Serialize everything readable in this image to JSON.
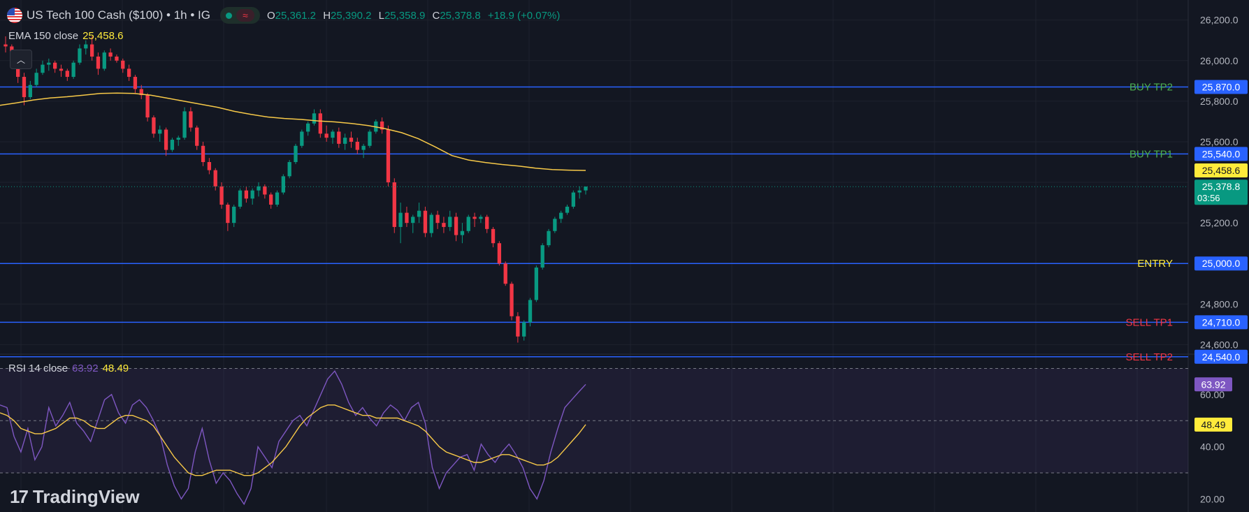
{
  "header": {
    "title": "US Tech 100 Cash ($100) • 1h • IG",
    "o_key": "O",
    "o_val": "25,361.2",
    "h_key": "H",
    "h_val": "25,390.2",
    "l_key": "L",
    "l_val": "25,358.9",
    "c_key": "C",
    "c_val": "25,378.8",
    "change": "+18.9 (+0.07%)"
  },
  "ema_legend": {
    "label": "EMA 150 close",
    "value": "25,458.6"
  },
  "rsi_legend": {
    "label": "RSI 14 close",
    "value1": "63.92",
    "value2": "48.49"
  },
  "brand": {
    "name": "TradingView"
  },
  "colors": {
    "background": "#131722",
    "up": "#089981",
    "down": "#f23645",
    "ema": "#f7c948",
    "rsi": "#7e57c2",
    "rsi_ma": "#f7c948",
    "level_line": "#2962ff",
    "buy_label": "#4caf50",
    "sell_label": "#f23645",
    "entry_label": "#ffeb3b"
  },
  "chart_data": [
    {
      "type": "candlestick",
      "title": "US Tech 100 Cash ($100) • 1h • IG",
      "y_ticks": [
        "26,200.0",
        "26,000.0",
        "25,800.0",
        "25,600.0",
        "25,200.0",
        "24,800.0",
        "24,600.0"
      ],
      "ylim": [
        24560,
        26230
      ],
      "grid": true,
      "current_price": {
        "value": 25378.8,
        "label": "25,378.8",
        "countdown": "03:56"
      },
      "ema": {
        "name": "EMA 150 close",
        "last_value": 25458.6,
        "last_label": "25,458.6",
        "values": [
          25780,
          25792,
          25806,
          25816,
          25822,
          25830,
          25838,
          25840,
          25838,
          25830,
          25815,
          25800,
          25785,
          25770,
          25750,
          25735,
          25722,
          25715,
          25710,
          25703,
          25698,
          25690,
          25680,
          25665,
          25645,
          25615,
          25575,
          25532,
          25510,
          25498,
          25488,
          25480,
          25470,
          25463,
          25460,
          25458.6
        ]
      },
      "levels": [
        {
          "label": "BUY TP2",
          "value": 25870,
          "value_label": "25,870.0",
          "kind": "buy"
        },
        {
          "label": "BUY TP1",
          "value": 25540,
          "value_label": "25,540.0",
          "kind": "buy"
        },
        {
          "label": "ENTRY",
          "value": 25000,
          "value_label": "25,000.0",
          "kind": "entry"
        },
        {
          "label": "SELL TP1",
          "value": 24710,
          "value_label": "24,710.0",
          "kind": "sell"
        },
        {
          "label": "SELL TP2",
          "value": 24540,
          "value_label": "24,540.0",
          "kind": "sell"
        }
      ],
      "ohlc": [
        [
          26080,
          26120,
          26040,
          26070
        ],
        [
          26070,
          26080,
          25960,
          25990
        ],
        [
          25990,
          26000,
          25890,
          25920
        ],
        [
          25920,
          25940,
          25780,
          25820
        ],
        [
          25820,
          25900,
          25810,
          25880
        ],
        [
          25880,
          25960,
          25870,
          25940
        ],
        [
          25940,
          26000,
          25930,
          25980
        ],
        [
          25980,
          26010,
          25950,
          25990
        ],
        [
          25990,
          26000,
          25940,
          25960
        ],
        [
          25960,
          25980,
          25920,
          25950
        ],
        [
          25950,
          25960,
          25900,
          25920
        ],
        [
          25920,
          26000,
          25910,
          25990
        ],
        [
          25990,
          26080,
          25980,
          26060
        ],
        [
          26060,
          26100,
          26030,
          26080
        ],
        [
          26080,
          26120,
          26000,
          26020
        ],
        [
          26020,
          26040,
          25930,
          25960
        ],
        [
          25960,
          26050,
          25950,
          26040
        ],
        [
          26040,
          26060,
          26000,
          26020
        ],
        [
          26020,
          26030,
          25990,
          26000
        ],
        [
          26000,
          26010,
          25940,
          25960
        ],
        [
          25960,
          25980,
          25900,
          25920
        ],
        [
          25920,
          25930,
          25840,
          25860
        ],
        [
          25860,
          25880,
          25810,
          25830
        ],
        [
          25830,
          25840,
          25700,
          25720
        ],
        [
          25720,
          25730,
          25620,
          25640
        ],
        [
          25640,
          25680,
          25600,
          25660
        ],
        [
          25660,
          25670,
          25530,
          25560
        ],
        [
          25560,
          25620,
          25550,
          25610
        ],
        [
          25610,
          25630,
          25580,
          25620
        ],
        [
          25620,
          25770,
          25610,
          25750
        ],
        [
          25750,
          25770,
          25650,
          25670
        ],
        [
          25670,
          25680,
          25560,
          25580
        ],
        [
          25580,
          25600,
          25480,
          25500
        ],
        [
          25500,
          25520,
          25440,
          25460
        ],
        [
          25460,
          25470,
          25360,
          25380
        ],
        [
          25380,
          25400,
          25270,
          25290
        ],
        [
          25290,
          25300,
          25160,
          25200
        ],
        [
          25200,
          25290,
          25180,
          25280
        ],
        [
          25280,
          25370,
          25270,
          25360
        ],
        [
          25360,
          25380,
          25300,
          25320
        ],
        [
          25320,
          25370,
          25290,
          25360
        ],
        [
          25360,
          25400,
          25330,
          25380
        ],
        [
          25380,
          25390,
          25320,
          25340
        ],
        [
          25340,
          25350,
          25270,
          25290
        ],
        [
          25290,
          25360,
          25280,
          25350
        ],
        [
          25350,
          25440,
          25340,
          25430
        ],
        [
          25430,
          25510,
          25420,
          25500
        ],
        [
          25500,
          25590,
          25490,
          25580
        ],
        [
          25580,
          25660,
          25570,
          25650
        ],
        [
          25650,
          25700,
          25630,
          25690
        ],
        [
          25690,
          25760,
          25680,
          25740
        ],
        [
          25740,
          25760,
          25620,
          25640
        ],
        [
          25640,
          25680,
          25600,
          25620
        ],
        [
          25620,
          25660,
          25590,
          25650
        ],
        [
          25650,
          25670,
          25570,
          25590
        ],
        [
          25590,
          25640,
          25560,
          25620
        ],
        [
          25620,
          25650,
          25570,
          25600
        ],
        [
          25600,
          25620,
          25540,
          25560
        ],
        [
          25560,
          25590,
          25520,
          25580
        ],
        [
          25580,
          25660,
          25570,
          25650
        ],
        [
          25650,
          25710,
          25640,
          25700
        ],
        [
          25700,
          25720,
          25640,
          25660
        ],
        [
          25660,
          25680,
          25380,
          25400
        ],
        [
          25400,
          25420,
          25150,
          25180
        ],
        [
          25180,
          25300,
          25100,
          25250
        ],
        [
          25250,
          25280,
          25180,
          25200
        ],
        [
          25200,
          25240,
          25150,
          25230
        ],
        [
          25230,
          25300,
          25200,
          25260
        ],
        [
          25260,
          25280,
          25130,
          25150
        ],
        [
          25150,
          25250,
          25130,
          25240
        ],
        [
          25240,
          25260,
          25170,
          25200
        ],
        [
          25200,
          25230,
          25150,
          25180
        ],
        [
          25180,
          25260,
          25160,
          25230
        ],
        [
          25230,
          25250,
          25110,
          25140
        ],
        [
          25140,
          25200,
          25100,
          25160
        ],
        [
          25160,
          25240,
          25150,
          25230
        ],
        [
          25230,
          25250,
          25180,
          25220
        ],
        [
          25220,
          25240,
          25200,
          25230
        ],
        [
          25230,
          25240,
          25150,
          25170
        ],
        [
          25170,
          25180,
          25080,
          25100
        ],
        [
          25100,
          25110,
          24990,
          25000
        ],
        [
          25000,
          25010,
          24890,
          24900
        ],
        [
          24900,
          24910,
          24720,
          24740
        ],
        [
          24740,
          24760,
          24610,
          24640
        ],
        [
          24640,
          24720,
          24620,
          24710
        ],
        [
          24710,
          24830,
          24690,
          24820
        ],
        [
          24820,
          24990,
          24810,
          24980
        ],
        [
          24980,
          25100,
          24970,
          25090
        ],
        [
          25090,
          25170,
          25080,
          25160
        ],
        [
          25160,
          25230,
          25150,
          25220
        ],
        [
          25220,
          25260,
          25200,
          25250
        ],
        [
          25250,
          25290,
          25240,
          25280
        ],
        [
          25280,
          25360,
          25270,
          25350
        ],
        [
          25350,
          25380,
          25320,
          25360
        ],
        [
          25360,
          25380,
          25340,
          25379
        ]
      ]
    },
    {
      "type": "line",
      "title": "RSI 14 close",
      "y_ticks": [
        "60.00",
        "40.00",
        "20.00"
      ],
      "ylim": [
        15,
        72
      ],
      "bands": [
        70,
        50,
        30
      ],
      "grid": true,
      "series": [
        {
          "name": "RSI 14 close",
          "last_label": "63.92",
          "values": [
            56,
            55,
            44,
            38,
            47,
            35,
            40,
            55,
            48,
            52,
            57,
            49,
            46,
            42,
            50,
            58,
            60,
            53,
            49,
            56,
            58,
            55,
            50,
            44,
            33,
            25,
            20,
            24,
            38,
            47,
            35,
            26,
            30,
            27,
            22,
            18,
            24,
            40,
            36,
            32,
            42,
            46,
            50,
            52,
            48,
            54,
            60,
            66,
            69,
            64,
            57,
            52,
            55,
            51,
            48,
            53,
            56,
            54,
            50,
            55,
            57,
            49,
            32,
            24,
            30,
            33,
            36,
            37,
            31,
            41,
            37,
            34,
            38,
            41,
            37,
            32,
            24,
            20,
            27,
            38,
            47,
            55,
            58,
            61,
            63.9
          ]
        },
        {
          "name": "RSI MA",
          "last_label": "48.49",
          "values": [
            53,
            52,
            50,
            47,
            46,
            45,
            45,
            46,
            47,
            49,
            51,
            51,
            50,
            48,
            47,
            47,
            49,
            51,
            52,
            52,
            51,
            50,
            48,
            44,
            40,
            36,
            33,
            30,
            29,
            29,
            30,
            31,
            31,
            31,
            30,
            29,
            29,
            30,
            32,
            34,
            37,
            40,
            44,
            48,
            51,
            53,
            55,
            56,
            56,
            55,
            54,
            53,
            52,
            52,
            51,
            51,
            51,
            51,
            50,
            49,
            48,
            46,
            43,
            40,
            38,
            37,
            36,
            35,
            34,
            34,
            35,
            36,
            37,
            37,
            36,
            35,
            34,
            33,
            33,
            34,
            36,
            39,
            42,
            45,
            48.5
          ]
        }
      ]
    }
  ]
}
